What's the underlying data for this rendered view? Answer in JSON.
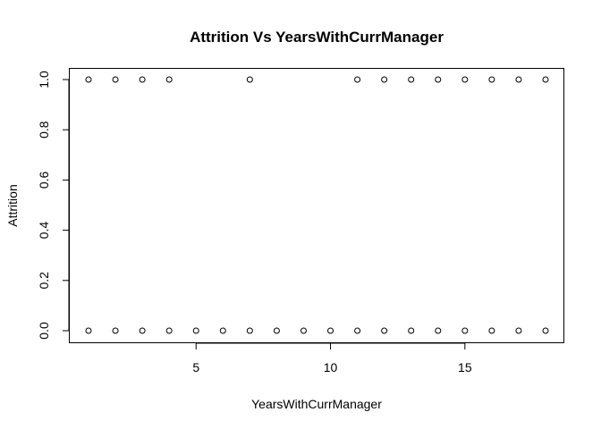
{
  "chart_data": {
    "type": "scatter",
    "title": "Attrition Vs YearsWithCurrManager",
    "xlabel": "YearsWithCurrManager",
    "ylabel": "Attrition",
    "xlim": [
      1,
      18
    ],
    "ylim": [
      0,
      1
    ],
    "xticks": [
      5,
      10,
      15
    ],
    "xtick_labels": [
      "5",
      "10",
      "15"
    ],
    "yticks": [
      0.0,
      0.2,
      0.4,
      0.6,
      0.8,
      1.0
    ],
    "ytick_labels": [
      "0.0",
      "0.2",
      "0.4",
      "0.6",
      "0.8",
      "1.0"
    ],
    "grid": false,
    "marker": "open-circle",
    "points": [
      {
        "x": 1,
        "y": 0
      },
      {
        "x": 2,
        "y": 0
      },
      {
        "x": 3,
        "y": 0
      },
      {
        "x": 4,
        "y": 0
      },
      {
        "x": 5,
        "y": 0
      },
      {
        "x": 6,
        "y": 0
      },
      {
        "x": 7,
        "y": 0
      },
      {
        "x": 8,
        "y": 0
      },
      {
        "x": 9,
        "y": 0
      },
      {
        "x": 10,
        "y": 0
      },
      {
        "x": 11,
        "y": 0
      },
      {
        "x": 12,
        "y": 0
      },
      {
        "x": 13,
        "y": 0
      },
      {
        "x": 14,
        "y": 0
      },
      {
        "x": 15,
        "y": 0
      },
      {
        "x": 16,
        "y": 0
      },
      {
        "x": 17,
        "y": 0
      },
      {
        "x": 18,
        "y": 0
      },
      {
        "x": 1,
        "y": 1
      },
      {
        "x": 2,
        "y": 1
      },
      {
        "x": 3,
        "y": 1
      },
      {
        "x": 4,
        "y": 1
      },
      {
        "x": 7,
        "y": 1
      },
      {
        "x": 11,
        "y": 1
      },
      {
        "x": 12,
        "y": 1
      },
      {
        "x": 13,
        "y": 1
      },
      {
        "x": 14,
        "y": 1
      },
      {
        "x": 15,
        "y": 1
      },
      {
        "x": 16,
        "y": 1
      },
      {
        "x": 17,
        "y": 1
      },
      {
        "x": 18,
        "y": 1
      }
    ]
  }
}
